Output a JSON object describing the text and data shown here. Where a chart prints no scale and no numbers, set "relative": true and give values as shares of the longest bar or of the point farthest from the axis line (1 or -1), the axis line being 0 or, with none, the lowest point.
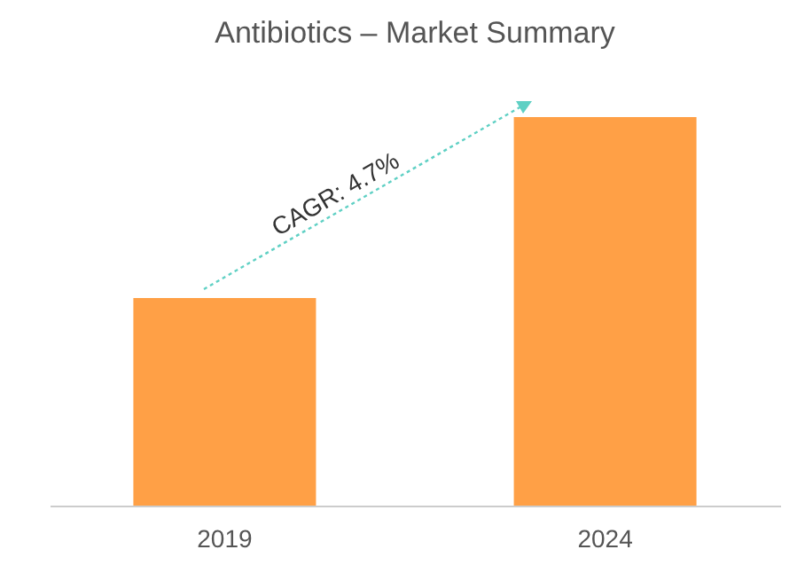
{
  "chart_data": {
    "type": "bar",
    "title": "Antibiotics – Market Summary",
    "categories": [
      "2019",
      "2024"
    ],
    "values": [
      0.534,
      1
    ],
    "color": "#ffa046",
    "relative": true,
    "annotations": [
      "CAGR: 4.7%"
    ]
  }
}
